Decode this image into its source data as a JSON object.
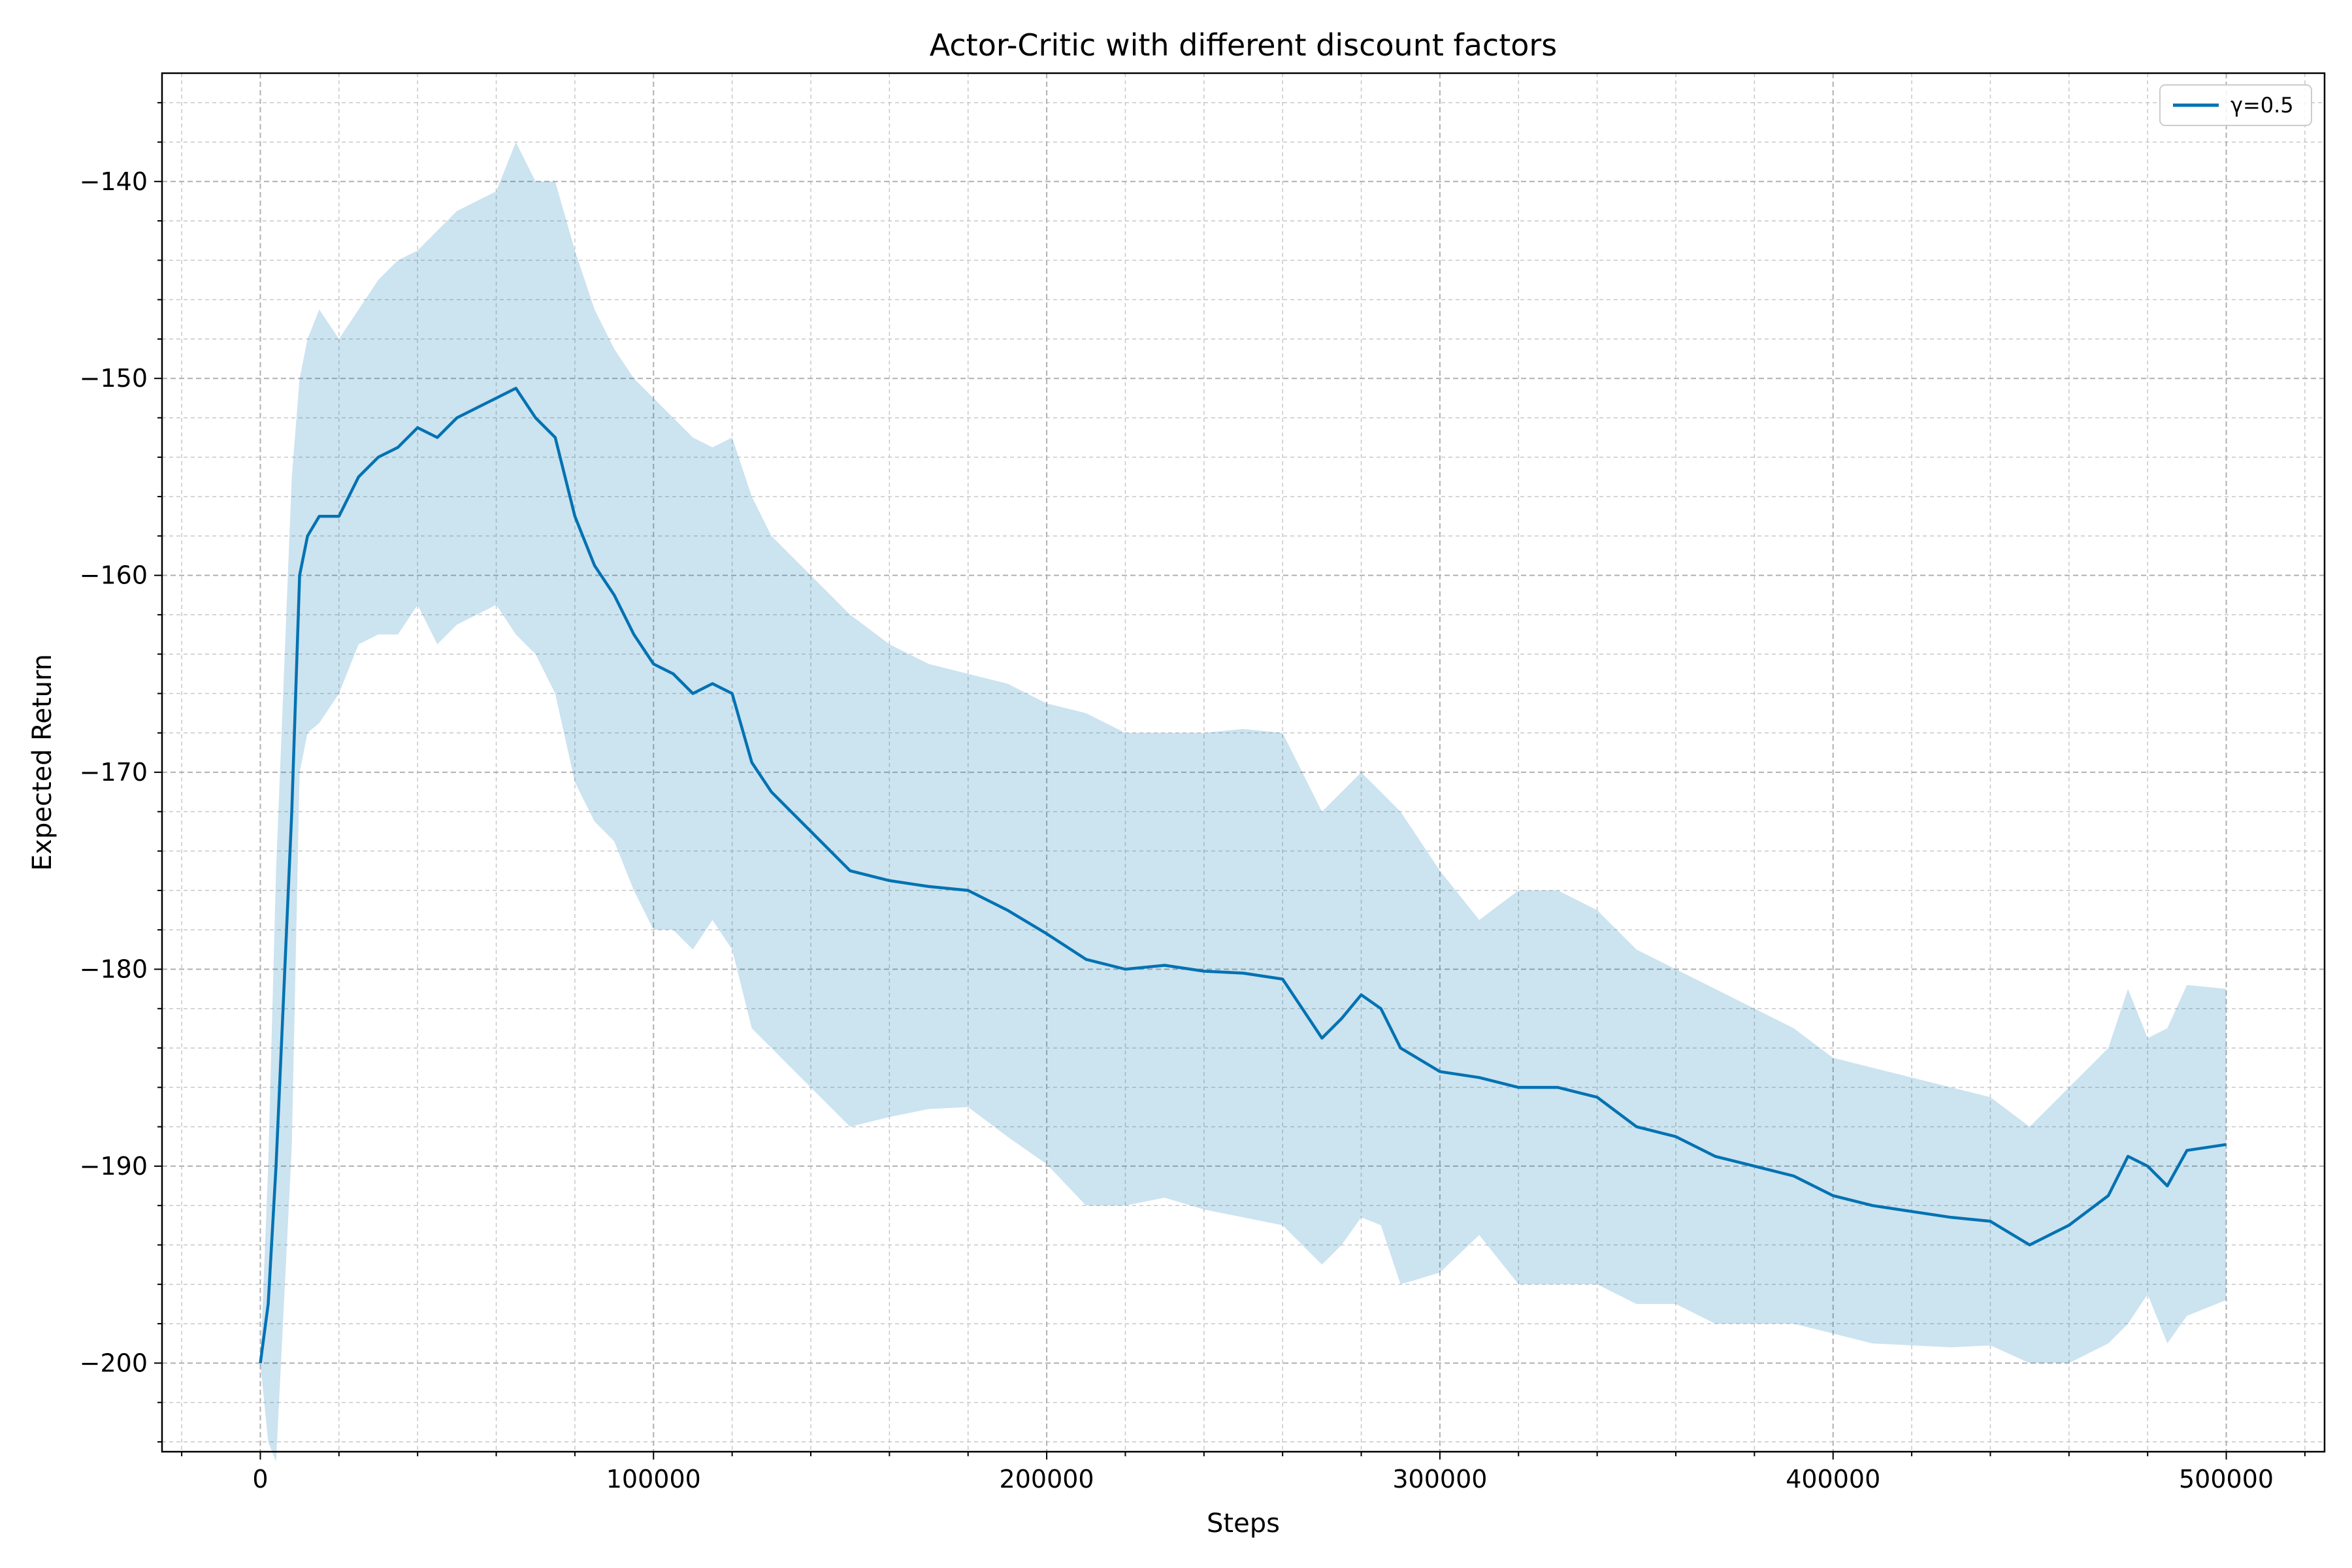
{
  "chart_data": {
    "type": "line",
    "title": "Actor-Critic with different discount factors",
    "xlabel": "Steps",
    "ylabel": "Expected Return",
    "xlim": [
      -25000,
      525000
    ],
    "ylim": [
      -204.5,
      -134.5
    ],
    "xticks": [
      0,
      100000,
      200000,
      300000,
      400000,
      500000
    ],
    "xtick_labels": [
      "0",
      "100000",
      "200000",
      "300000",
      "400000",
      "500000"
    ],
    "yticks": [
      -200,
      -190,
      -180,
      -170,
      -160,
      -150,
      -140
    ],
    "ytick_labels": [
      "−200",
      "−190",
      "−180",
      "−170",
      "−160",
      "−150",
      "−140"
    ],
    "grid": true,
    "minor_grid": true,
    "legend_position": "top-right",
    "series": [
      {
        "name": "γ=0.5",
        "color": "#0072b2",
        "band_color": "#0072b2",
        "band_opacity": 0.2,
        "x": [
          0,
          2000,
          4000,
          6000,
          8000,
          10000,
          12000,
          15000,
          20000,
          25000,
          30000,
          35000,
          40000,
          45000,
          50000,
          55000,
          60000,
          65000,
          70000,
          75000,
          80000,
          85000,
          90000,
          95000,
          100000,
          105000,
          110000,
          115000,
          120000,
          125000,
          130000,
          135000,
          140000,
          150000,
          160000,
          170000,
          180000,
          190000,
          200000,
          210000,
          220000,
          230000,
          240000,
          250000,
          260000,
          265000,
          270000,
          275000,
          280000,
          285000,
          290000,
          300000,
          310000,
          320000,
          330000,
          340000,
          350000,
          360000,
          370000,
          380000,
          390000,
          400000,
          410000,
          420000,
          430000,
          440000,
          450000,
          460000,
          470000,
          475000,
          480000,
          485000,
          490000,
          500000
        ],
        "mean": [
          -200,
          -197,
          -190,
          -181,
          -172,
          -160,
          -158,
          -157,
          -157,
          -155,
          -154,
          -153.5,
          -152.5,
          -153,
          -152,
          -151.5,
          -151,
          -150.5,
          -152,
          -153,
          -157,
          -159.5,
          -161,
          -163,
          -164.5,
          -165,
          -166,
          -165.5,
          -166,
          -169.5,
          -171,
          -172,
          -173,
          -175,
          -175.5,
          -175.8,
          -176,
          -177,
          -178.2,
          -179.5,
          -180,
          -179.8,
          -180.1,
          -180.2,
          -180.5,
          -182,
          -183.5,
          -182.5,
          -181.3,
          -182,
          -184,
          -185.2,
          -185.5,
          -186,
          -186,
          -186.5,
          -188,
          -188.5,
          -189.5,
          -190,
          -190.5,
          -191.5,
          -192,
          -192.3,
          -192.6,
          -192.8,
          -194,
          -193,
          -191.5,
          -189.5,
          -190,
          -191,
          -189.2,
          -188.9
        ],
        "upper": [
          -200,
          -190,
          -175,
          -165,
          -155,
          -150,
          -148,
          -146.5,
          -148,
          -146.5,
          -145,
          -144,
          -143.5,
          -142.5,
          -141.5,
          -141,
          -140.5,
          -138,
          -140,
          -140,
          -143.5,
          -146.5,
          -148.5,
          -150,
          -151,
          -152,
          -153,
          -153.5,
          -153,
          -156,
          -158,
          -159,
          -160,
          -162,
          -163.5,
          -164.5,
          -165,
          -165.5,
          -166.5,
          -167,
          -168,
          -168,
          -168,
          -167.8,
          -168,
          -170,
          -172,
          -171,
          -170,
          -171,
          -172,
          -175,
          -177.5,
          -176,
          -176,
          -177,
          -179,
          -180,
          -181,
          -182,
          -183,
          -184.5,
          -185,
          -185.5,
          -186,
          -186.5,
          -188,
          -186,
          -184,
          -181,
          -183.5,
          -183,
          -180.8,
          -181
        ]
      }
    ]
  }
}
